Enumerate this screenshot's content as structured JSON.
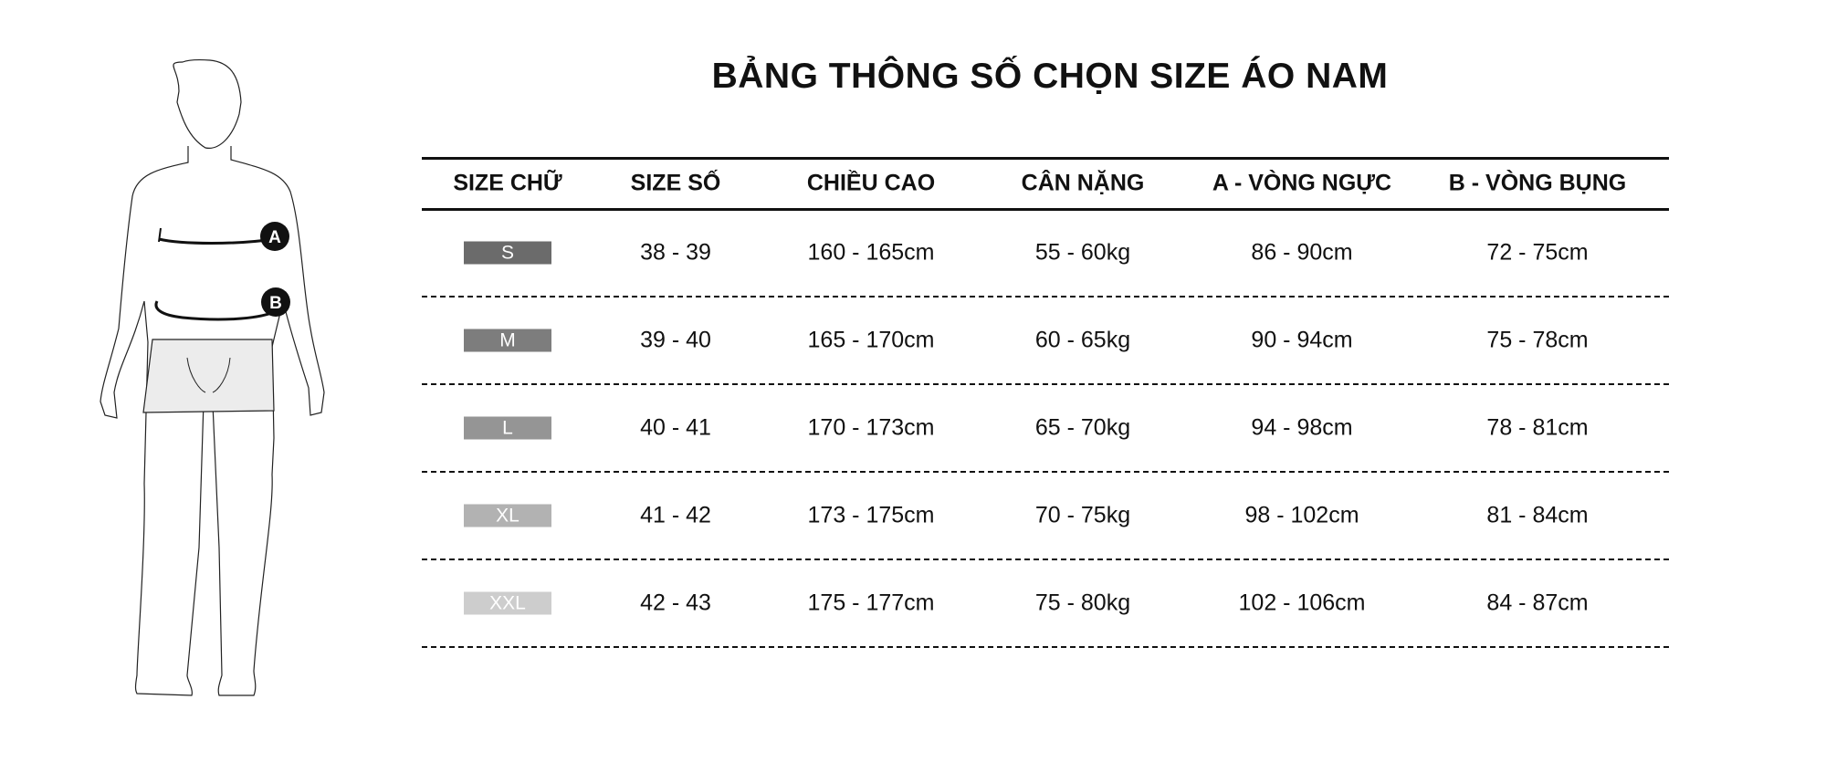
{
  "title": "BẢNG THÔNG SỐ CHỌN SIZE ÁO NAM",
  "figure": {
    "marker_a": "A",
    "marker_b": "B"
  },
  "table": {
    "headers": [
      "SIZE CHỮ",
      "SIZE SỐ",
      "CHIỀU CAO",
      "CÂN NẶNG",
      "A - VÒNG NGỰC",
      "B - VÒNG BỤNG"
    ],
    "rows": [
      {
        "size": "S",
        "color": "#6b6b6b",
        "cells": [
          "38 - 39",
          "160 - 165cm",
          "55 - 60kg",
          "86 - 90cm",
          "72 - 75cm"
        ]
      },
      {
        "size": "M",
        "color": "#7d7d7d",
        "cells": [
          "39 - 40",
          "165 - 170cm",
          "60 - 65kg",
          "90 - 94cm",
          "75 - 78cm"
        ]
      },
      {
        "size": "L",
        "color": "#959595",
        "cells": [
          "40 - 41",
          "170 - 173cm",
          "65 - 70kg",
          "94 - 98cm",
          "78 - 81cm"
        ]
      },
      {
        "size": "XL",
        "color": "#b2b2b2",
        "cells": [
          "41 - 42",
          "173 - 175cm",
          "70 - 75kg",
          "98 - 102cm",
          "81 - 84cm"
        ]
      },
      {
        "size": "XXL",
        "color": "#cdcdcd",
        "cells": [
          "42 - 43",
          "175 - 177cm",
          "75 - 80kg",
          "102 - 106cm",
          "84 - 87cm"
        ]
      }
    ]
  }
}
